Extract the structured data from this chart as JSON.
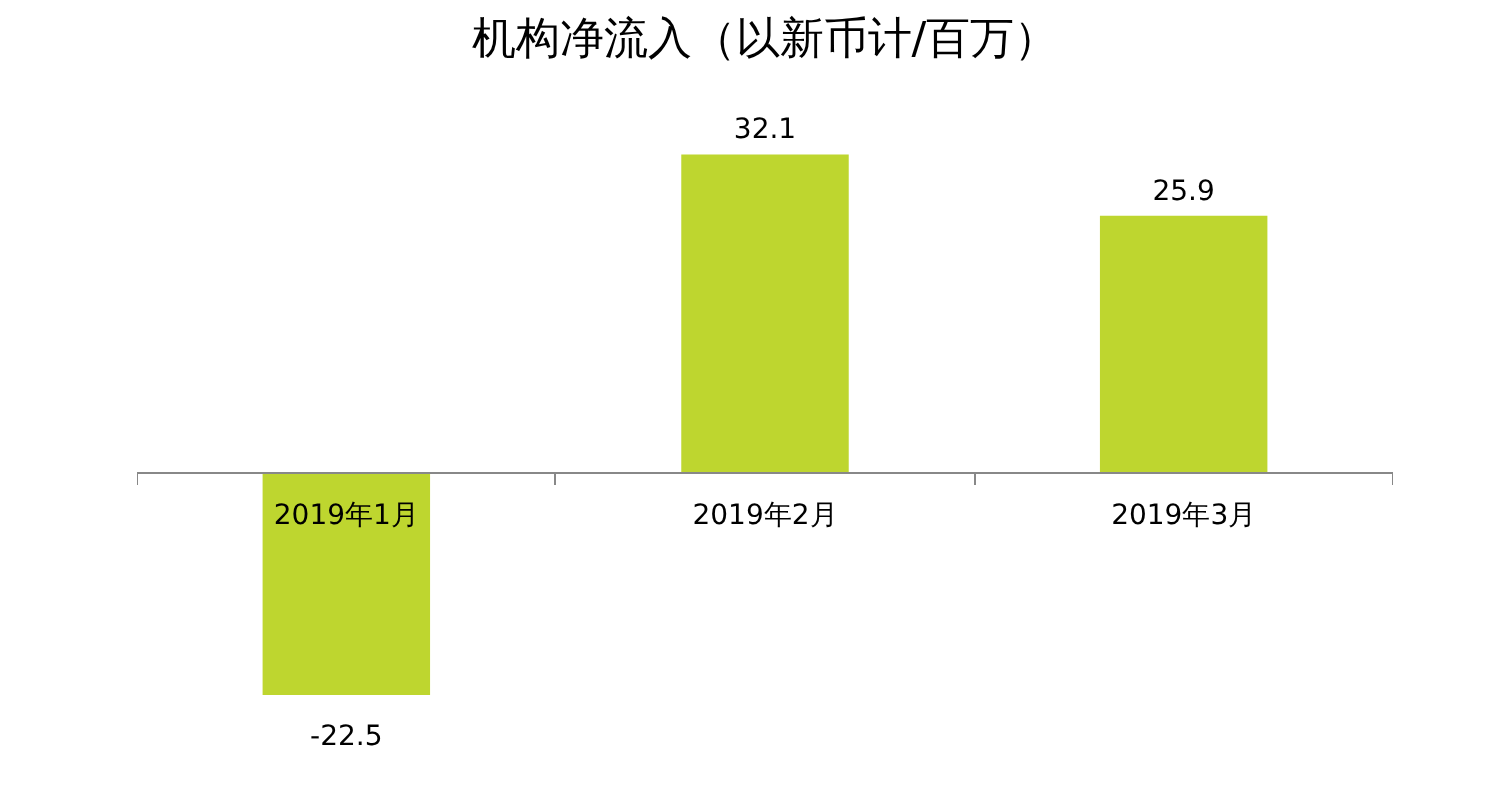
{
  "chart_data": {
    "type": "bar",
    "title": "机构净流入（以新币计/百万）",
    "categories": [
      "2019年1月",
      "2019年2月",
      "2019年3月"
    ],
    "values": [
      -22.5,
      32.1,
      25.9
    ],
    "color": "#bed62f",
    "data_labels": true,
    "grid": false
  }
}
